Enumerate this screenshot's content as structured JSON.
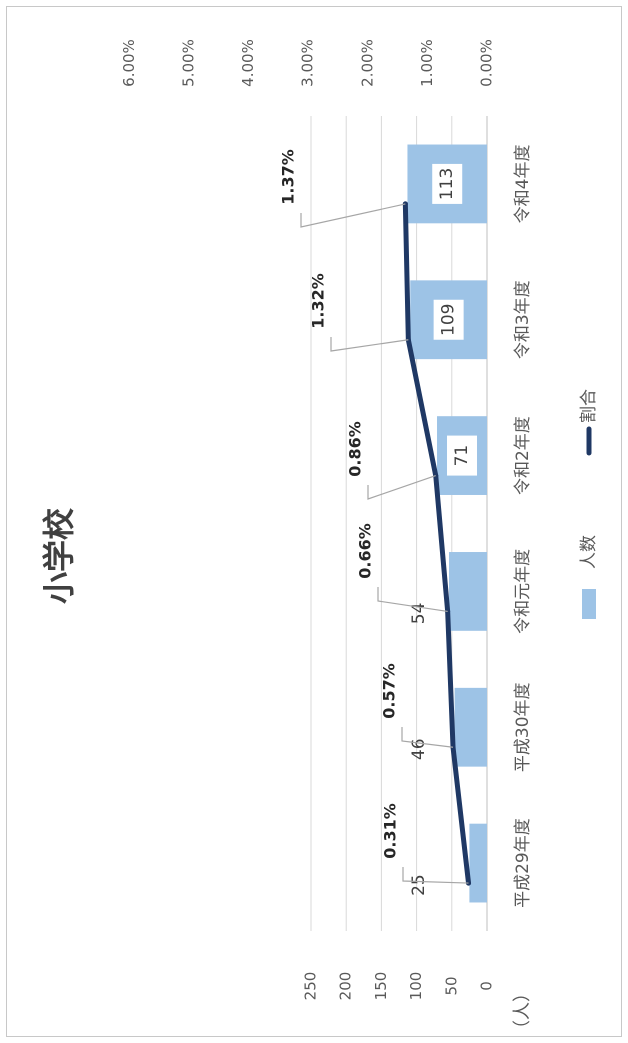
{
  "chart_data": {
    "type": "bar",
    "orientation": "rotated-90-clockwise",
    "title": "小学校",
    "unit_label": "（人）",
    "categories": [
      "平成29年度",
      "平成30年度",
      "令和元年度",
      "令和2年度",
      "令和3年度",
      "令和4年度"
    ],
    "series": [
      {
        "name": "人数",
        "kind": "bar",
        "axis": "left",
        "color": "#9dc3e6",
        "values": [
          25,
          46,
          54,
          71,
          109,
          113
        ],
        "labels": [
          "25",
          "46",
          "54",
          "71",
          "109",
          "113"
        ]
      },
      {
        "name": "割合",
        "kind": "line",
        "axis": "right",
        "color": "#1f3864",
        "values": [
          0.31,
          0.57,
          0.66,
          0.86,
          1.32,
          1.37
        ],
        "labels": [
          "0.31%",
          "0.57%",
          "0.66%",
          "0.86%",
          "1.32%",
          "1.37%"
        ]
      }
    ],
    "left_axis": {
      "range": [
        0,
        250
      ],
      "ticks": [
        "0",
        "50",
        "100",
        "150",
        "200",
        "250"
      ]
    },
    "right_axis": {
      "range": [
        0,
        6
      ],
      "ticks": [
        "0.00%",
        "1.00%",
        "2.00%",
        "3.00%",
        "4.00%",
        "5.00%",
        "6.00%"
      ]
    },
    "grid": true,
    "legend_position": "bottom"
  }
}
